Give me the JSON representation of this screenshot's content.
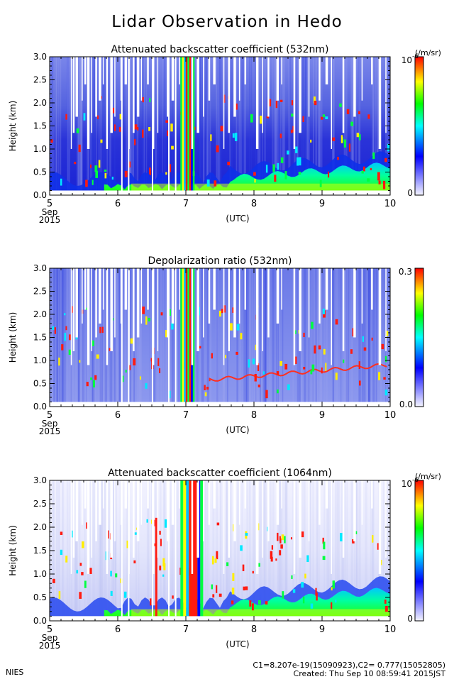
{
  "page": {
    "title": "Lidar Observation in Hedo",
    "footer_left": "NIES",
    "footer_constants": "C1=8.207e-19(15090923),C2= 0.777(15052805)",
    "footer_created": "Created: Thu Sep 10 08:59:41 2015JST"
  },
  "chart_data": [
    {
      "type": "heatmap",
      "title": "Attenuated backscatter coefficient (532nm)",
      "ylabel": "Height (km)",
      "xlabel": "(UTC)",
      "x_ticks": [
        "5",
        "6",
        "7",
        "8",
        "9",
        "10"
      ],
      "x_start_label": [
        "Sep",
        "2015"
      ],
      "y_ticks": [
        "0.0",
        "0.5",
        "1.0",
        "1.5",
        "2.0",
        "2.5",
        "3.0"
      ],
      "xlim": [
        5,
        10
      ],
      "ylim": [
        0,
        3
      ],
      "colorbar": {
        "min_label": "0",
        "max_label": "10",
        "max_exponent": "-6",
        "unit": "(/m/sr)"
      },
      "colormap": [
        "#f4f4ff",
        "#0000ff",
        "#00ffff",
        "#00ff00",
        "#ffff00",
        "#ff0000"
      ]
    },
    {
      "type": "heatmap",
      "title": "Depolarization ratio (532nm)",
      "ylabel": "Height (km)",
      "xlabel": "(UTC)",
      "x_ticks": [
        "5",
        "6",
        "7",
        "8",
        "9",
        "10"
      ],
      "x_start_label": [
        "Sep",
        "2015"
      ],
      "y_ticks": [
        "0.0",
        "0.5",
        "1.0",
        "1.5",
        "2.0",
        "2.5",
        "3.0"
      ],
      "xlim": [
        5,
        10
      ],
      "ylim": [
        0,
        3
      ],
      "colorbar": {
        "min_label": "0.0",
        "max_label": "0.3",
        "max_exponent": "",
        "unit": ""
      },
      "colormap": [
        "#f4f4ff",
        "#0000ff",
        "#00ffff",
        "#00ff00",
        "#ffff00",
        "#ff0000"
      ]
    },
    {
      "type": "heatmap",
      "title": "Attenuated backscatter coefficient (1064nm)",
      "ylabel": "Height (km)",
      "xlabel": "(UTC)",
      "x_ticks": [
        "5",
        "6",
        "7",
        "8",
        "9",
        "10"
      ],
      "x_start_label": [
        "Sep",
        "2015"
      ],
      "y_ticks": [
        "0.0",
        "0.5",
        "1.0",
        "1.5",
        "2.0",
        "2.5",
        "3.0"
      ],
      "xlim": [
        5,
        10
      ],
      "ylim": [
        0,
        3
      ],
      "colorbar": {
        "min_label": "0",
        "max_label": "10",
        "max_exponent": "-6",
        "unit": "(/m/sr)"
      },
      "colormap": [
        "#f4f4ff",
        "#0000ff",
        "#00ffff",
        "#00ff00",
        "#ffff00",
        "#ff0000"
      ]
    }
  ]
}
